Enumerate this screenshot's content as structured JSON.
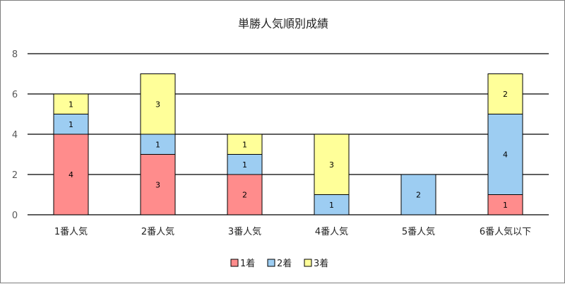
{
  "chart_data": {
    "type": "bar",
    "stacked": true,
    "title": "単勝人気順別成績",
    "categories": [
      "1番人気",
      "2番人気",
      "3番人気",
      "4番人気",
      "5番人気",
      "6番人気以下"
    ],
    "series": [
      {
        "name": "1着",
        "values": [
          4,
          3,
          2,
          0,
          0,
          1
        ],
        "color": "#ff8c8c"
      },
      {
        "name": "2着",
        "values": [
          1,
          1,
          1,
          1,
          2,
          4
        ],
        "color": "#9dcdf2"
      },
      {
        "name": "3着",
        "values": [
          1,
          3,
          1,
          3,
          0,
          2
        ],
        "color": "#ffff99"
      }
    ],
    "ylim": [
      0,
      8
    ],
    "yticks": [
      0,
      2,
      4,
      6,
      8
    ],
    "grid": true,
    "legend": "bottom",
    "xlabel": "",
    "ylabel": ""
  }
}
